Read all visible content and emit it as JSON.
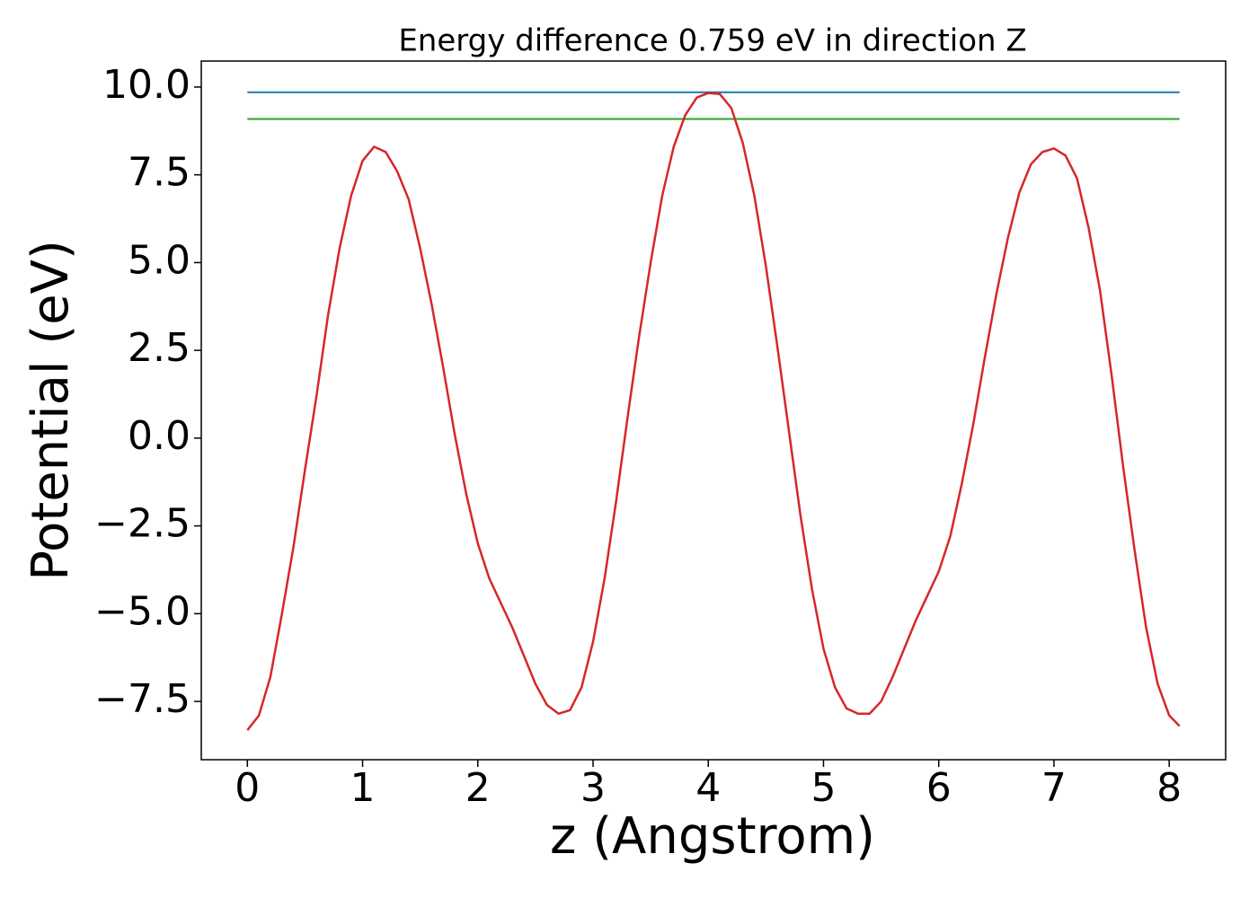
{
  "chart_data": {
    "type": "line",
    "title": "Energy difference 0.759 eV in direction Z",
    "xlabel": "z (Angstrom)",
    "ylabel": "Potential (eV)",
    "xlim": [
      -0.4,
      8.49
    ],
    "ylim": [
      -9.16,
      10.74
    ],
    "xticks": [
      0,
      1,
      2,
      3,
      4,
      5,
      6,
      7,
      8
    ],
    "yticks": [
      {
        "value": -7.5,
        "label": "−7.5"
      },
      {
        "value": -5.0,
        "label": "−5.0"
      },
      {
        "value": -2.5,
        "label": "−2.5"
      },
      {
        "value": 0.0,
        "label": "0.0"
      },
      2.5,
      {
        "value": 5.0,
        "label": "5.0"
      },
      7.5,
      {
        "value": 10.0,
        "label": "10.0"
      }
    ],
    "series": [
      {
        "color": "#1f77b4",
        "x": [
          0,
          8.09
        ],
        "values": [
          9.85,
          9.85
        ]
      },
      {
        "color": "#2ca02c",
        "x": [
          0,
          8.09
        ],
        "values": [
          9.09,
          9.09
        ]
      },
      {
        "color": "#d62728",
        "x": [
          0,
          0.1,
          0.2,
          0.3,
          0.4,
          0.5,
          0.6,
          0.7,
          0.8,
          0.9,
          1.0,
          1.1,
          1.2,
          1.3,
          1.4,
          1.5,
          1.6,
          1.7,
          1.8,
          1.9,
          2.0,
          2.1,
          2.2,
          2.3,
          2.4,
          2.5,
          2.6,
          2.7,
          2.8,
          2.9,
          3.0,
          3.1,
          3.2,
          3.3,
          3.4,
          3.5,
          3.6,
          3.7,
          3.8,
          3.9,
          4.0,
          4.1,
          4.2,
          4.3,
          4.4,
          4.5,
          4.6,
          4.7,
          4.8,
          4.9,
          5.0,
          5.1,
          5.2,
          5.3,
          5.4,
          5.5,
          5.6,
          5.7,
          5.8,
          5.9,
          6.0,
          6.1,
          6.2,
          6.3,
          6.4,
          6.5,
          6.6,
          6.7,
          6.8,
          6.9,
          7.0,
          7.1,
          7.2,
          7.3,
          7.4,
          7.5,
          7.6,
          7.7,
          7.8,
          7.9,
          8.0,
          8.09
        ],
        "values": [
          -8.32,
          -7.9,
          -6.8,
          -5.0,
          -3.1,
          -0.9,
          1.2,
          3.5,
          5.4,
          6.9,
          7.9,
          8.3,
          8.15,
          7.6,
          6.8,
          5.4,
          3.8,
          2.0,
          0.1,
          -1.6,
          -3.0,
          -4.0,
          -4.7,
          -5.4,
          -6.2,
          -7.0,
          -7.6,
          -7.85,
          -7.75,
          -7.1,
          -5.8,
          -4.0,
          -1.8,
          0.6,
          2.9,
          5.0,
          6.9,
          8.3,
          9.2,
          9.7,
          9.83,
          9.8,
          9.4,
          8.4,
          6.9,
          4.9,
          2.6,
          0.2,
          -2.2,
          -4.3,
          -6.0,
          -7.1,
          -7.7,
          -7.85,
          -7.85,
          -7.5,
          -6.8,
          -6.0,
          -5.2,
          -4.5,
          -3.8,
          -2.8,
          -1.3,
          0.4,
          2.3,
          4.1,
          5.7,
          7.0,
          7.8,
          8.15,
          8.25,
          8.05,
          7.4,
          6.0,
          4.2,
          1.8,
          -0.8,
          -3.2,
          -5.4,
          -7.0,
          -7.9,
          -8.2
        ]
      }
    ]
  }
}
